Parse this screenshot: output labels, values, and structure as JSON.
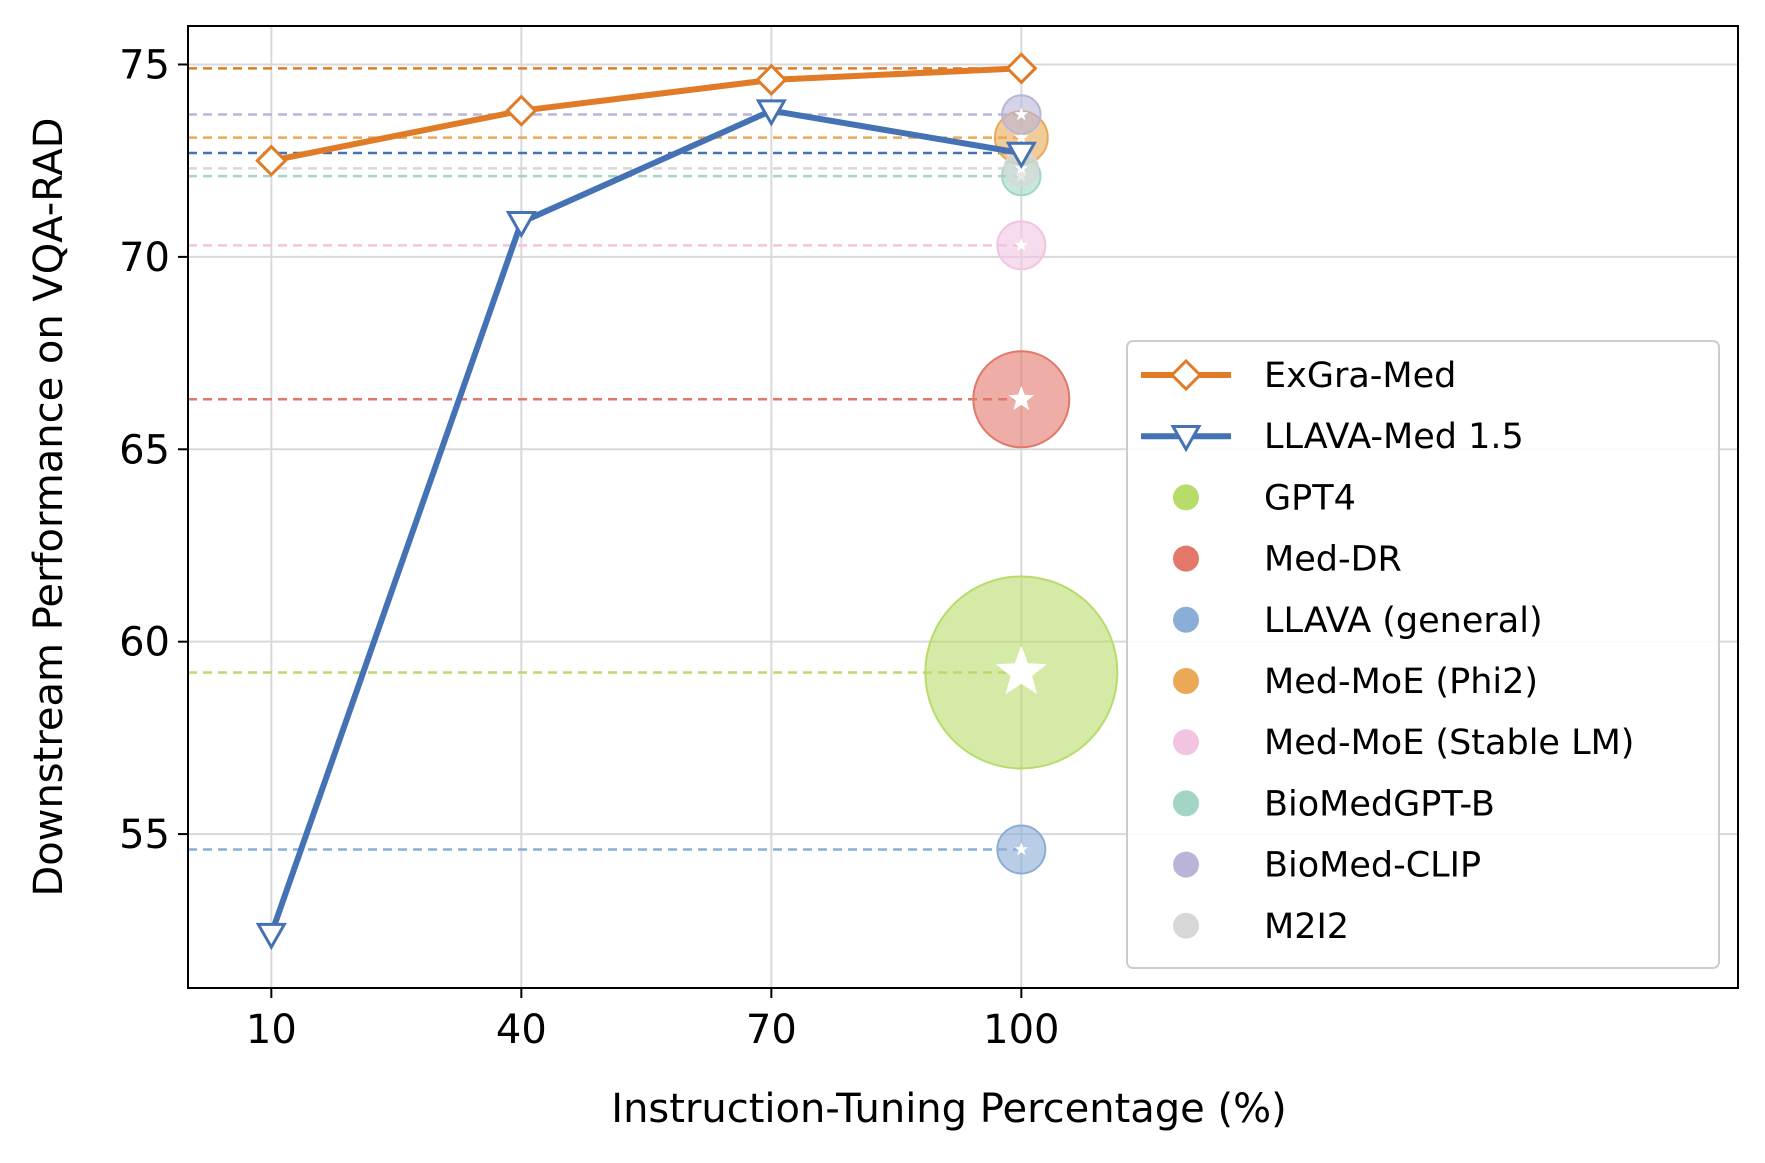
{
  "chart_data": {
    "type": "line",
    "xlabel": "Instruction-Tuning Percentage (%)",
    "ylabel": "Downstream Performance on VQA-RAD",
    "x_ticks": [
      10,
      40,
      70,
      100
    ],
    "y_ticks": [
      55,
      60,
      65,
      70,
      75
    ],
    "xlim": [
      0,
      186
    ],
    "ylim": [
      51,
      76
    ],
    "grid": true,
    "legend_position": "center-right",
    "series": [
      {
        "name": "ExGra-Med",
        "kind": "line",
        "marker": "diamond",
        "color": "#E07B28",
        "x": [
          10,
          40,
          70,
          100
        ],
        "y": [
          72.5,
          73.8,
          74.6,
          74.9
        ]
      },
      {
        "name": "LLAVA-Med 1.5",
        "kind": "line",
        "marker": "triangle-down",
        "color": "#4472B4",
        "x": [
          10,
          40,
          70,
          100
        ],
        "y": [
          52.4,
          70.9,
          73.8,
          72.7
        ]
      }
    ],
    "baselines": [
      {
        "name": "GPT4",
        "x": 100,
        "y": 59.2,
        "size": 4.0,
        "color": "#B8DC6A"
      },
      {
        "name": "Med-DR",
        "x": 100,
        "y": 66.3,
        "size": 2.0,
        "color": "#E3776A"
      },
      {
        "name": "LLAVA (general)",
        "x": 100,
        "y": 54.6,
        "size": 1.0,
        "color": "#8AAED6"
      },
      {
        "name": "Med-MoE (Phi2)",
        "x": 100,
        "y": 73.1,
        "size": 1.1,
        "color": "#E9A957"
      },
      {
        "name": "Med-MoE (Stable LM)",
        "x": 100,
        "y": 70.3,
        "size": 1.0,
        "color": "#F2C4E2"
      },
      {
        "name": "BioMedGPT-B",
        "x": 100,
        "y": 72.1,
        "size": 0.8,
        "color": "#A2D5C6"
      },
      {
        "name": "BioMed-CLIP",
        "x": 100,
        "y": 73.7,
        "size": 0.8,
        "color": "#B9B5D9"
      },
      {
        "name": "M2I2",
        "x": 100,
        "y": 72.3,
        "size": 0.7,
        "color": "#D7D7D7"
      }
    ],
    "reference_lines": [
      {
        "y": 74.9,
        "color": "#E07B28"
      },
      {
        "y": 73.7,
        "color": "#B9B5D9"
      },
      {
        "y": 73.1,
        "color": "#E9A957"
      },
      {
        "y": 72.7,
        "color": "#4472B4"
      },
      {
        "y": 72.3,
        "color": "#D7D7D7"
      },
      {
        "y": 72.1,
        "color": "#A2D5C6"
      },
      {
        "y": 70.3,
        "color": "#F2C4E2"
      },
      {
        "y": 66.3,
        "color": "#E3776A"
      },
      {
        "y": 59.2,
        "color": "#B8DC6A"
      },
      {
        "y": 54.6,
        "color": "#8AAED6"
      }
    ]
  }
}
